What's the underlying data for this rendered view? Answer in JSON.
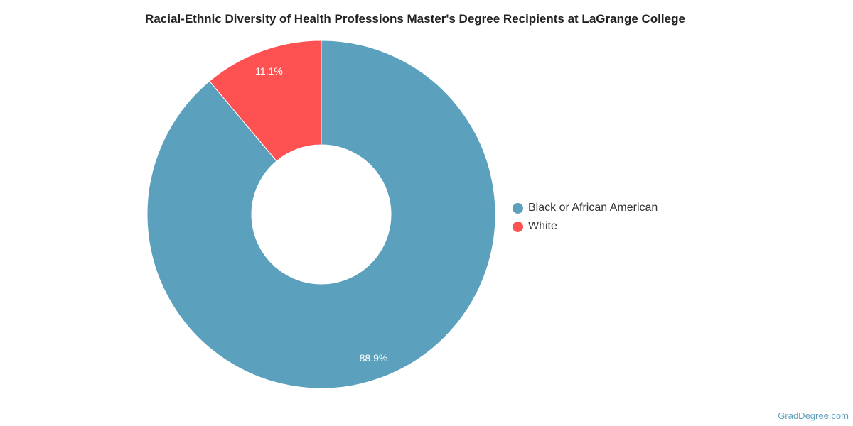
{
  "chart_data": {
    "type": "pie",
    "title": "Racial-Ethnic Diversity of Health Professions Master's Degree Recipients at LaGrange College",
    "donut": true,
    "slices": [
      {
        "label": "Black or African American",
        "value": 88.9,
        "display": "88.9%",
        "color": "#5ba1bd"
      },
      {
        "label": "White",
        "value": 11.1,
        "display": "11.1%",
        "color": "#fe5252"
      }
    ],
    "legend_position": "right"
  },
  "watermark": "GradDegree.com"
}
